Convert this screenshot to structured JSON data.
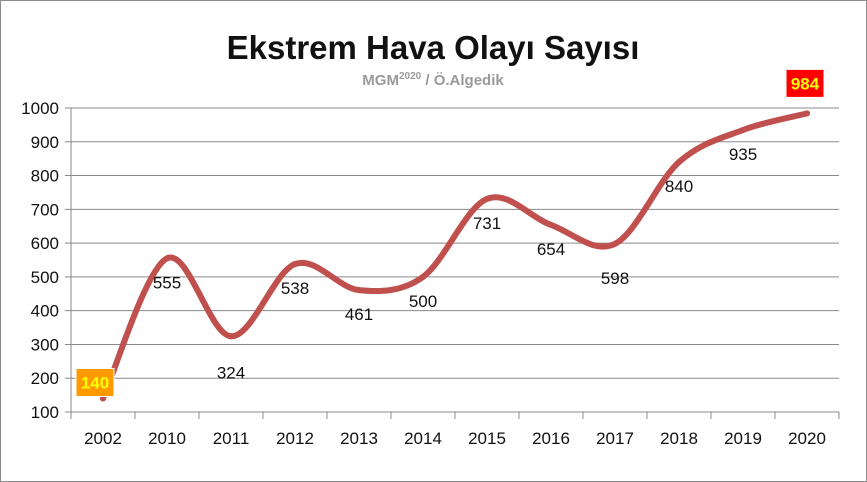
{
  "chart_data": {
    "type": "line",
    "title": "Ekstrem Hava Olayı Sayısı",
    "subtitle_main": "MGM",
    "subtitle_sup": "2020",
    "subtitle_rest": " / Ö.Algedik",
    "categories": [
      "2002",
      "2010",
      "2011",
      "2012",
      "2013",
      "2014",
      "2015",
      "2016",
      "2017",
      "2018",
      "2019",
      "2020"
    ],
    "series": [
      {
        "values": [
          140,
          555,
          324,
          538,
          461,
          500,
          731,
          654,
          598,
          840,
          935,
          984
        ]
      }
    ],
    "yticks": [
      "100",
      "200",
      "300",
      "400",
      "500",
      "600",
      "700",
      "800",
      "900",
      "1000"
    ],
    "ylim": [
      100,
      1000
    ],
    "smooth": true,
    "grid": true,
    "legend": "none",
    "colors": {
      "line": "#c0504d",
      "grid": "#8a8a8a",
      "highlight_first_bg": "#ff9900",
      "highlight_first_text": "#ffff00",
      "highlight_last_bg": "#ff0000",
      "highlight_last_text": "#ffff00"
    }
  }
}
